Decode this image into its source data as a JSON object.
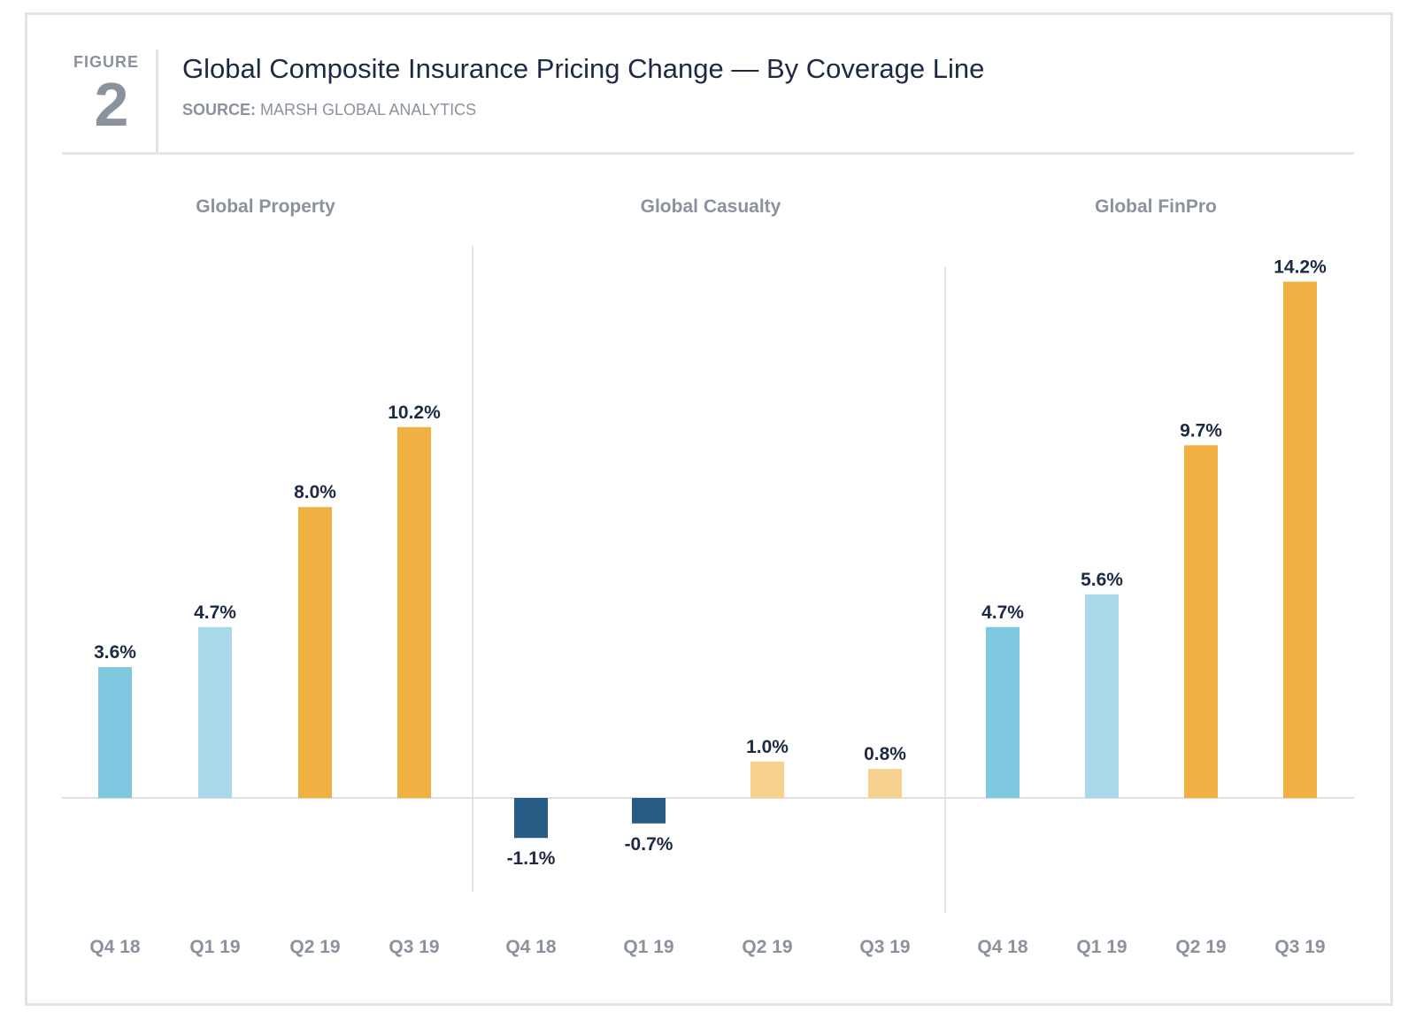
{
  "figure": {
    "label": "FIGURE",
    "number": "2",
    "title": "Global Composite Insurance Pricing Change — By Coverage Line",
    "source_label": "SOURCE:",
    "source_text": "MARSH GLOBAL ANALYTICS"
  },
  "colors": {
    "q4_18": "#7ec8e0",
    "q1_19": "#a9d9e8",
    "q2_q3_19": "#f0b042",
    "casualty_negative": "#275c85",
    "casualty_positive": "#f7d18e",
    "text_dark": "#1c2a44",
    "text_gray": "#8a929e"
  },
  "chart_data": {
    "type": "bar",
    "unit": "%",
    "categories": [
      "Q4 18",
      "Q1 19",
      "Q2 19",
      "Q3 19"
    ],
    "panels": [
      {
        "name": "Global Property",
        "values": [
          3.6,
          4.7,
          8.0,
          10.2
        ],
        "labels": [
          "3.6%",
          "4.7%",
          "8.0%",
          "10.2%"
        ]
      },
      {
        "name": "Global Casualty",
        "values": [
          -1.1,
          -0.7,
          1.0,
          0.8
        ],
        "labels": [
          "-1.1%",
          "-0.7%",
          "1.0%",
          "0.8%"
        ]
      },
      {
        "name": "Global FinPro",
        "values": [
          4.7,
          5.6,
          9.7,
          14.2
        ],
        "labels": [
          "4.7%",
          "5.6%",
          "9.7%",
          "14.2%"
        ]
      }
    ],
    "ylim": [
      -3.5,
      14.2
    ],
    "grid": false,
    "legend": "none"
  }
}
